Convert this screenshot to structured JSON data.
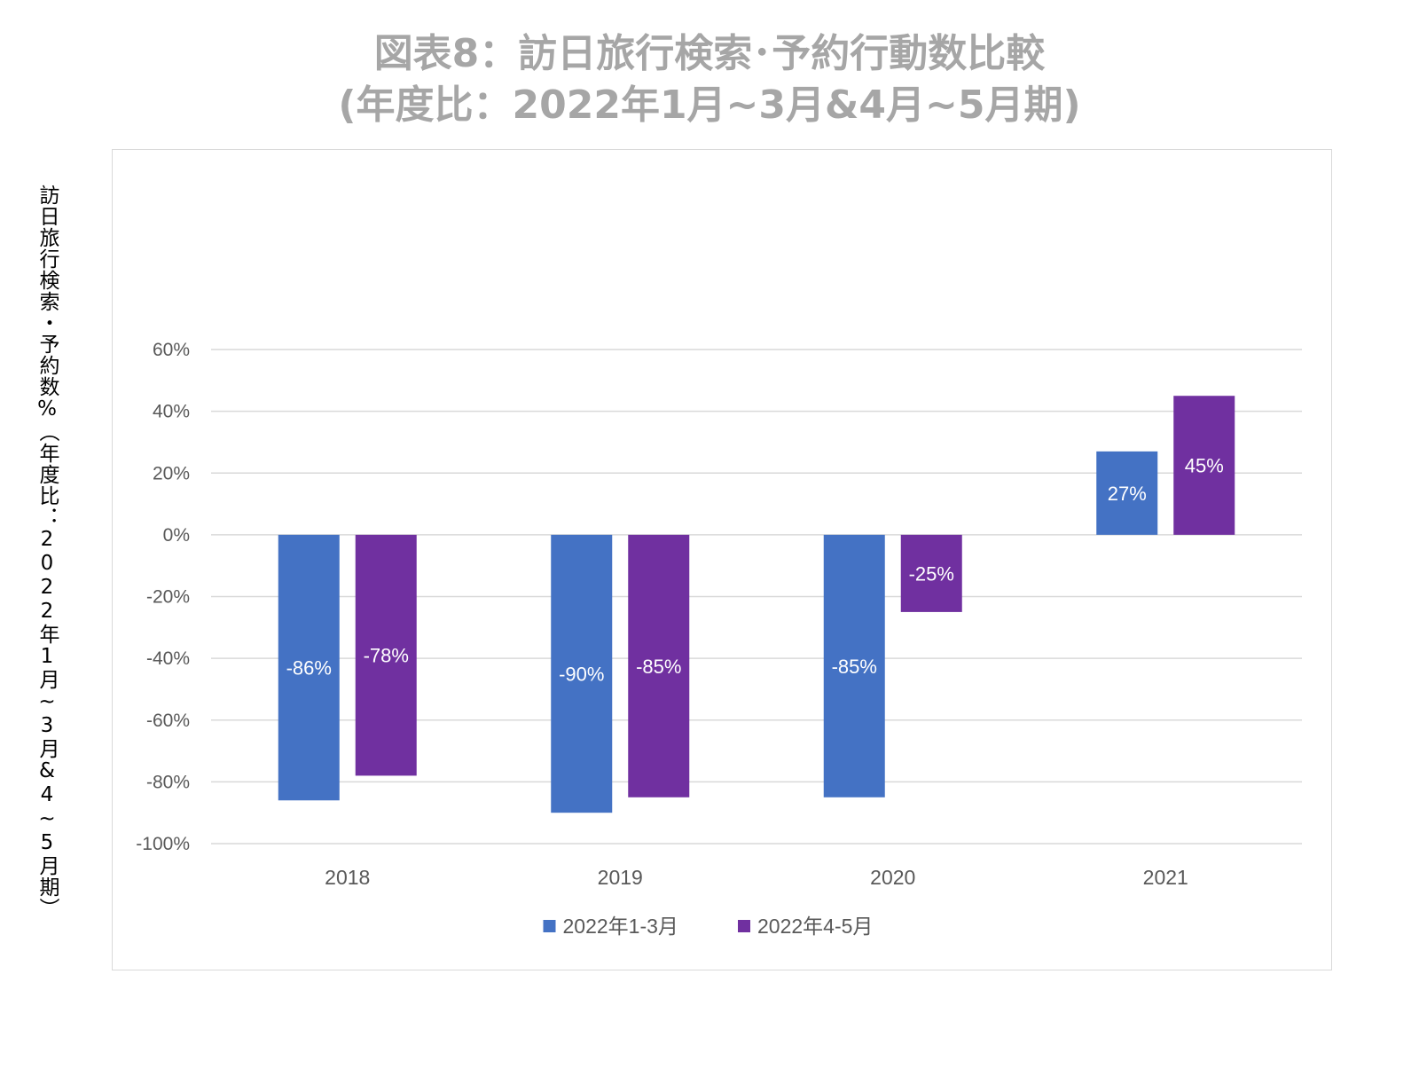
{
  "title_line1": "図表8：訪日旅行検索･予約行動数比較",
  "title_line2": "(年度比：2022年1月~3月&4月~5月期)",
  "ylabel": "訪日旅行検索・予約数%（年度比：2022年1月~3月&4~5月期）",
  "chart_data": {
    "type": "bar",
    "title": "図表8：訪日旅行検索･予約行動数比較 (年度比：2022年1月~3月&4月~5月期)",
    "ylabel": "訪日旅行検索・予約数%（年度比：2022年1月~3月&4~5月期）",
    "xlabel": "",
    "categories": [
      "2018",
      "2019",
      "2020",
      "2021"
    ],
    "series": [
      {
        "name": "2022年1-3月",
        "color": "#4472C4",
        "values": [
          -86,
          -90,
          -85,
          27
        ]
      },
      {
        "name": "2022年4-5月",
        "color": "#7030A0",
        "values": [
          -78,
          -85,
          -25,
          45
        ]
      }
    ],
    "value_unit": "%",
    "ylim": [
      -100,
      60
    ],
    "yticks": [
      60,
      40,
      20,
      0,
      -20,
      -40,
      -60,
      -80,
      -100
    ],
    "ytick_labels": [
      "60%",
      "40%",
      "20%",
      "0%",
      "-20%",
      "-40%",
      "-60%",
      "-80%",
      "-100%"
    ],
    "grid": true,
    "legend_position": "bottom"
  }
}
